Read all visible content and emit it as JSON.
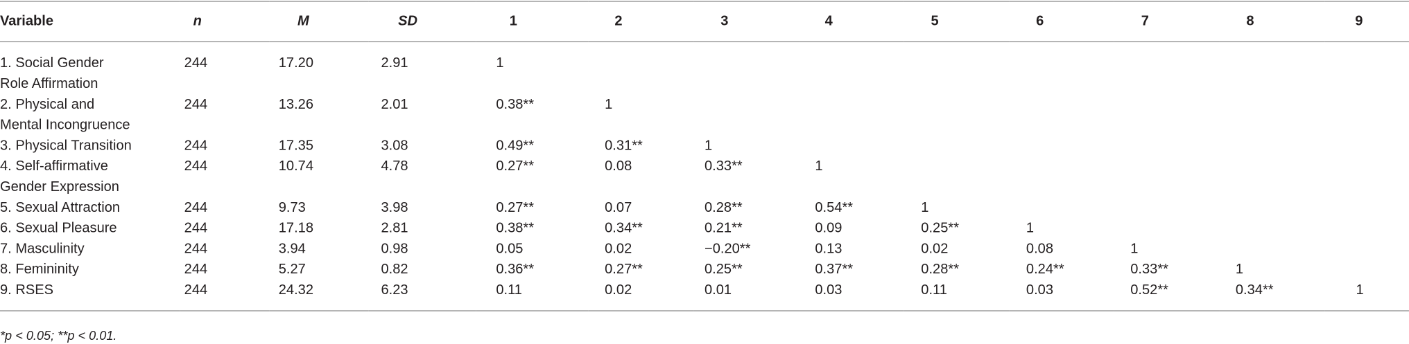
{
  "table": {
    "header": [
      "Variable",
      "n",
      "M",
      "SD",
      "1",
      "2",
      "3",
      "4",
      "5",
      "6",
      "7",
      "8",
      "9"
    ],
    "rows": [
      {
        "variable": [
          "1. Social Gender",
          "Role Affirmation"
        ],
        "cells": [
          "244",
          "17.20",
          "2.91",
          "1"
        ]
      },
      {
        "variable": [
          "2. Physical and",
          "Mental Incongruence"
        ],
        "cells": [
          "244",
          "13.26",
          "2.01",
          "0.38**",
          "1"
        ]
      },
      {
        "variable": [
          "3. Physical Transition"
        ],
        "cells": [
          "244",
          "17.35",
          "3.08",
          "0.49**",
          "0.31**",
          "1"
        ]
      },
      {
        "variable": [
          "4. Self-affirmative",
          "Gender Expression"
        ],
        "cells": [
          "244",
          "10.74",
          "4.78",
          "0.27**",
          "0.08",
          "0.33**",
          "1"
        ]
      },
      {
        "variable": [
          "5. Sexual Attraction"
        ],
        "cells": [
          "244",
          "9.73",
          "3.98",
          "0.27**",
          "0.07",
          "0.28**",
          "0.54**",
          "1"
        ]
      },
      {
        "variable": [
          "6. Sexual Pleasure"
        ],
        "cells": [
          "244",
          "17.18",
          "2.81",
          "0.38**",
          "0.34**",
          "0.21**",
          "0.09",
          "0.25**",
          "1"
        ]
      },
      {
        "variable": [
          "7. Masculinity"
        ],
        "cells": [
          "244",
          "3.94",
          "0.98",
          "0.05",
          "0.02",
          "−0.20**",
          "0.13",
          "0.02",
          "0.08",
          "1"
        ]
      },
      {
        "variable": [
          "8. Femininity"
        ],
        "cells": [
          "244",
          "5.27",
          "0.82",
          "0.36**",
          "0.27**",
          "0.25**",
          "0.37**",
          "0.28**",
          "0.24**",
          "0.33**",
          "1"
        ]
      },
      {
        "variable": [
          "9. RSES"
        ],
        "cells": [
          "244",
          "24.32",
          "6.23",
          "0.11",
          "0.02",
          "0.01",
          "0.03",
          "0.11",
          "0.03",
          "0.52**",
          "0.34**",
          "1"
        ]
      }
    ],
    "footnote": "*p < 0.05; **p < 0.01."
  }
}
